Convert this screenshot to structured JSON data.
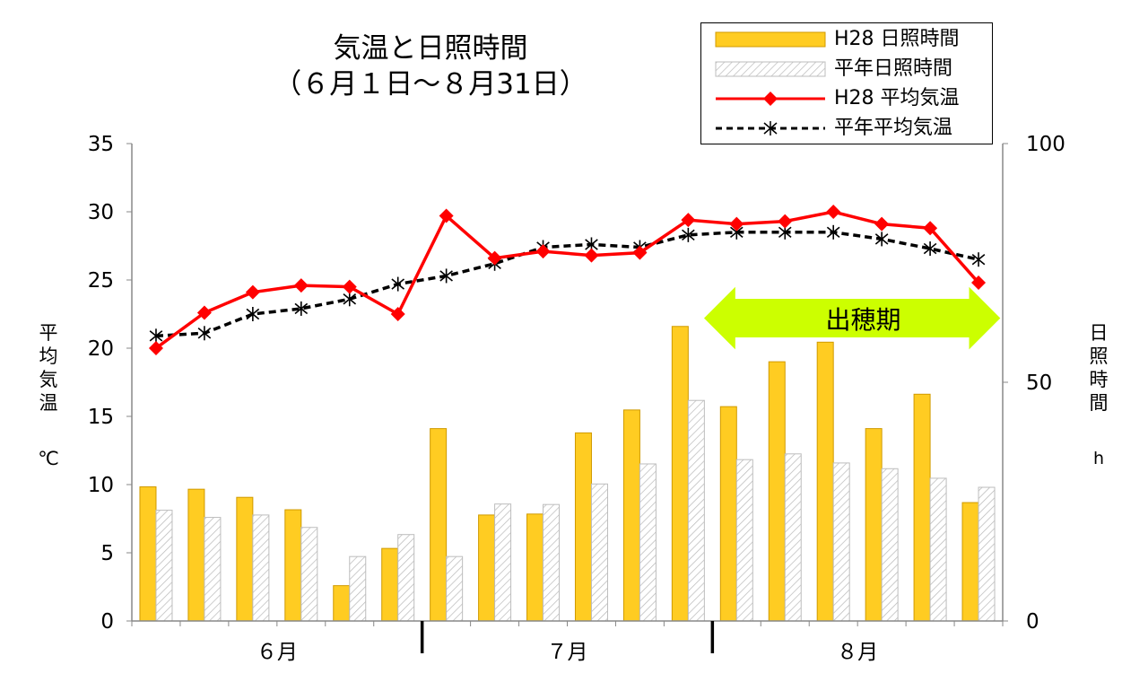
{
  "chart_data": {
    "type": "bar+line",
    "title_line1": "気温と日照時間",
    "title_line2": "（６月１日～８月31日）",
    "y_left_label": [
      "平",
      "均",
      "気",
      "温"
    ],
    "y_left_unit": "℃",
    "y_right_label": [
      "日",
      "照",
      "時",
      "間"
    ],
    "y_right_unit": "h",
    "y_left_range": [
      0,
      35
    ],
    "y_left_ticks": [
      "0",
      "5",
      "10",
      "15",
      "20",
      "25",
      "30",
      "35"
    ],
    "y_right_range": [
      0,
      100
    ],
    "y_right_ticks": [
      "0",
      "50",
      "100"
    ],
    "months": [
      "６月",
      "７月",
      "８月"
    ],
    "periods": 18,
    "grid": false,
    "legend_position": "top-right",
    "series": [
      {
        "name": "H28 日照時間",
        "kind": "bar",
        "axis": "right",
        "color": "#FFCC22",
        "values": [
          28.1,
          27.6,
          25.9,
          23.3,
          7.4,
          15.2,
          40.3,
          22.2,
          22.4,
          39.4,
          44.2,
          61.7,
          44.9,
          54.3,
          58.4,
          40.3,
          47.5,
          24.8
        ]
      },
      {
        "name": "平年日照時間",
        "kind": "bar",
        "axis": "right",
        "color": "#ffffff",
        "values": [
          23.2,
          21.7,
          22.2,
          19.6,
          13.5,
          18.1,
          13.5,
          24.5,
          24.4,
          28.7,
          32.9,
          46.2,
          33.8,
          35.0,
          33.1,
          31.9,
          29.9,
          28.0
        ]
      },
      {
        "name": "H28 平均気温",
        "kind": "line",
        "axis": "left",
        "color": "#FF0000",
        "values": [
          20.0,
          22.6,
          24.1,
          24.6,
          24.5,
          22.5,
          29.7,
          26.6,
          27.1,
          26.8,
          27.0,
          29.4,
          29.1,
          29.3,
          30.0,
          29.1,
          28.8,
          24.8
        ]
      },
      {
        "name": "平年平均気温",
        "kind": "line",
        "axis": "left",
        "color": "#000000",
        "values": [
          20.9,
          21.1,
          22.5,
          22.9,
          23.6,
          24.7,
          25.3,
          26.2,
          27.4,
          27.6,
          27.4,
          28.3,
          28.5,
          28.5,
          28.5,
          28.0,
          27.3,
          26.5
        ]
      }
    ],
    "annotation": {
      "label": "出穂期",
      "from_period": 12,
      "to_period": 17,
      "y": 22.2,
      "color": "#CCFF00"
    }
  }
}
